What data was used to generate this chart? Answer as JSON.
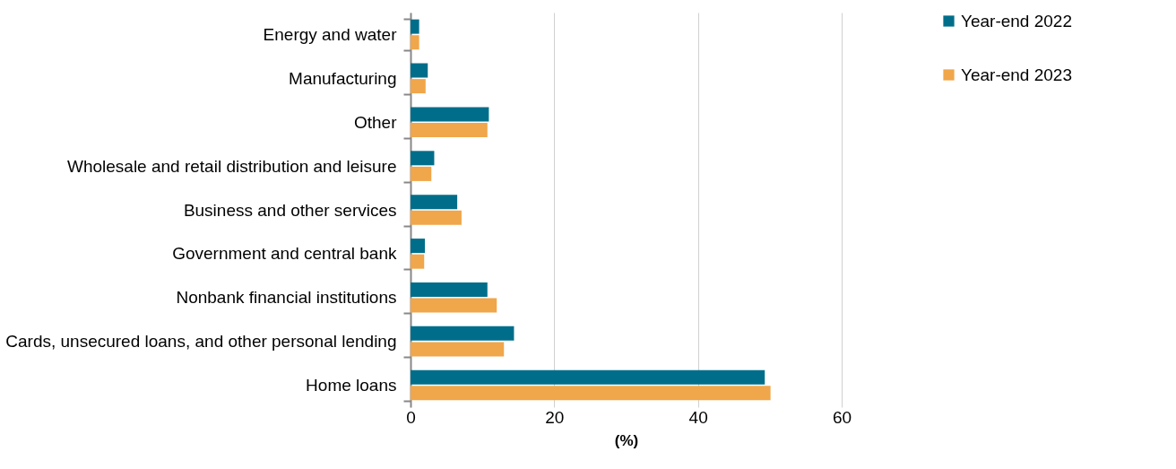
{
  "chart_data": {
    "type": "bar",
    "orientation": "horizontal",
    "xlabel": "(%)",
    "categories": [
      "Energy and water",
      "Manufacturing",
      "Other",
      "Wholesale and retail distribution and leisure",
      "Business and other services",
      "Government and central bank",
      "Nonbank financial institutions",
      "Cards, unsecured loans, and other personal lending",
      "Home loans"
    ],
    "series": [
      {
        "name": "Year-end 2022",
        "color": "#006e8a",
        "values": [
          1.2,
          2.4,
          10.9,
          3.3,
          6.5,
          2.0,
          10.7,
          14.4,
          49.3
        ]
      },
      {
        "name": "Year-end 2023",
        "color": "#f0a64a",
        "values": [
          1.2,
          2.1,
          10.7,
          2.9,
          7.1,
          1.9,
          12.0,
          13.0,
          50.1
        ]
      }
    ],
    "xlim": [
      0,
      60
    ],
    "xticks": [
      0,
      20,
      40,
      60
    ],
    "grid": "x",
    "legend": "top right"
  }
}
